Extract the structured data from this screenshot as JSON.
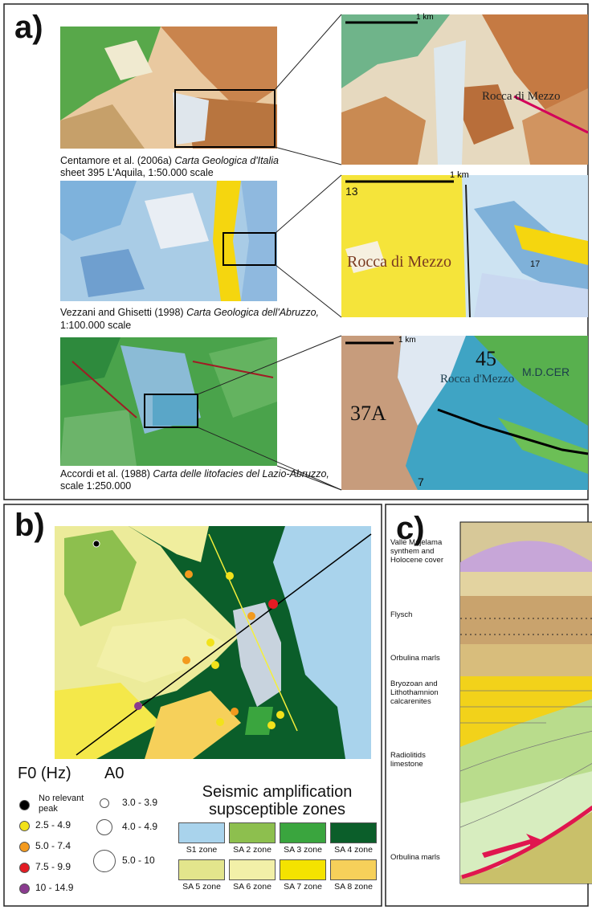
{
  "panel_a": {
    "label": "a)",
    "rows": [
      {
        "citation": "Centamore et al. (2006a)",
        "map_title": "Carta Geologica d'Italia",
        "details": "sheet 395 L'Aquila, 1:50.000 scale",
        "zoom_labels": [
          "1 km",
          "Rocca di Mezzo"
        ]
      },
      {
        "citation": "Vezzani and Ghisetti (1998)",
        "map_title": "Carta Geologica dell'Abruzzo,",
        "details": "1:100.000 scale",
        "zoom_labels": [
          "1 km",
          "13",
          "Rocca di Mezzo",
          "17"
        ]
      },
      {
        "citation": "Accordi et al. (1988)",
        "map_title": "Carta delle litofacies del Lazio-Abruzzo,",
        "details": "scale 1:250.000",
        "zoom_labels": [
          "1 km",
          "45",
          "37A",
          "Rocca d'Mezzo",
          "M.D.CER",
          "7"
        ]
      }
    ]
  },
  "panel_b": {
    "label": "b)",
    "f0_title": "F0 (Hz)",
    "f0_items": [
      {
        "label": [
          "No relevant",
          "peak"
        ],
        "color": "#000000"
      },
      {
        "label": [
          "2.5 - 4.9"
        ],
        "color": "#f2e21b"
      },
      {
        "label": [
          "5.0 - 7.4"
        ],
        "color": "#f39a1e"
      },
      {
        "label": [
          "7.5 - 9.9"
        ],
        "color": "#e31b23"
      },
      {
        "label": [
          "10 - 14.9"
        ],
        "color": "#8a3b8f"
      }
    ],
    "a0_title": "A0",
    "a0_items": [
      "3.0 - 3.9",
      "4.0 - 4.9",
      "5.0 - 10"
    ],
    "zones_title": [
      "Seismic amplification",
      "supsceptible zones"
    ],
    "zones": [
      {
        "label": "S1 zone",
        "color": "#a9d3ec"
      },
      {
        "label": "SA 2 zone",
        "color": "#8dbf4e"
      },
      {
        "label": "SA 3 zone",
        "color": "#3aa53e"
      },
      {
        "label": "SA 4 zone",
        "color": "#0b5e2a"
      },
      {
        "label": "SA 5 zone",
        "color": "#e3e58c"
      },
      {
        "label": "SA 6 zone",
        "color": "#f2f0a8"
      },
      {
        "label": "SA 7 zone",
        "color": "#f4e300"
      },
      {
        "label": "SA 8 zone",
        "color": "#f6d05a"
      }
    ]
  },
  "panel_c": {
    "label": "c)",
    "units": [
      "Valle Majelama synthem and Holocene cover",
      "Flysch",
      "Orbulina marls",
      "Bryozoan and Lithothamnion calcarenites",
      "Radiolitids limestone",
      "Orbulina marls"
    ]
  }
}
